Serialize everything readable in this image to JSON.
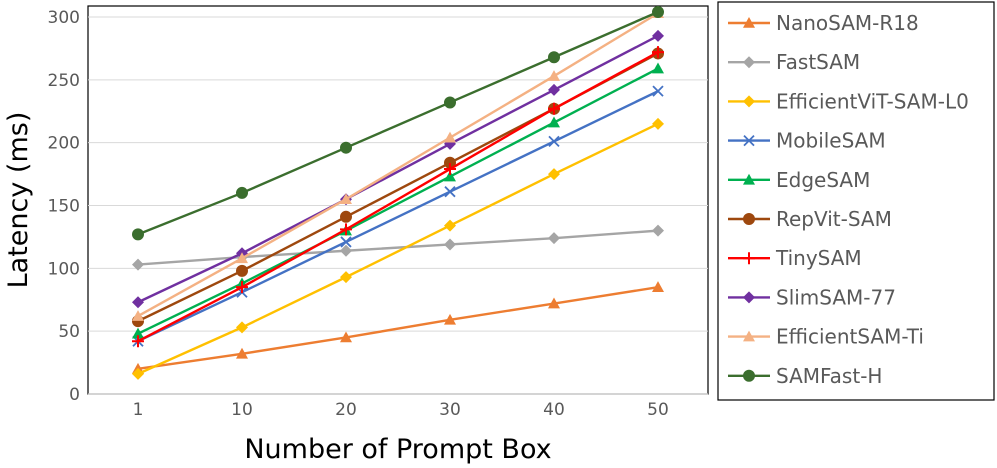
{
  "chart_data": {
    "type": "line",
    "title": "",
    "xlabel": "Number of Prompt Box",
    "ylabel": "Latency (ms)",
    "categories": [
      "1",
      "10",
      "20",
      "30",
      "40",
      "50"
    ],
    "ylim": [
      0,
      300
    ],
    "yticks": [
      0,
      50,
      100,
      150,
      200,
      250,
      300
    ],
    "grid": "horizontal",
    "legend_position": "right",
    "series": [
      {
        "name": "NanoSAM-R18",
        "color": "#ED7D31",
        "marker": "triangle",
        "values": [
          20,
          32,
          45,
          59,
          72,
          85
        ]
      },
      {
        "name": "FastSAM",
        "color": "#A5A5A5",
        "marker": "diamond",
        "values": [
          103,
          109,
          114,
          119,
          124,
          130
        ]
      },
      {
        "name": "EfficientViT-SAM-L0",
        "color": "#FFC000",
        "marker": "diamond",
        "values": [
          16,
          53,
          93,
          134,
          175,
          215
        ]
      },
      {
        "name": "MobileSAM",
        "color": "#4472C4",
        "marker": "x",
        "values": [
          42,
          81,
          121,
          161,
          201,
          241
        ]
      },
      {
        "name": "EdgeSAM",
        "color": "#00B050",
        "marker": "triangle",
        "values": [
          48,
          88,
          130,
          173,
          216,
          259
        ]
      },
      {
        "name": "RepVit-SAM",
        "color": "#9E480E",
        "marker": "circle",
        "values": [
          58,
          98,
          141,
          184,
          227,
          271
        ]
      },
      {
        "name": "TinySAM",
        "color": "#FF0000",
        "marker": "plus",
        "values": [
          42,
          85,
          131,
          179,
          227,
          272
        ]
      },
      {
        "name": "SlimSAM-77",
        "color": "#7030A0",
        "marker": "diamond",
        "values": [
          73,
          112,
          155,
          199,
          242,
          285
        ]
      },
      {
        "name": "EfficientSAM-Ti",
        "color": "#F4B183",
        "marker": "triangle",
        "values": [
          62,
          108,
          155,
          204,
          253,
          303
        ]
      },
      {
        "name": "SAMFast-H",
        "color": "#3B6E2E",
        "marker": "circle",
        "values": [
          127,
          160,
          196,
          232,
          268,
          304
        ]
      }
    ]
  }
}
